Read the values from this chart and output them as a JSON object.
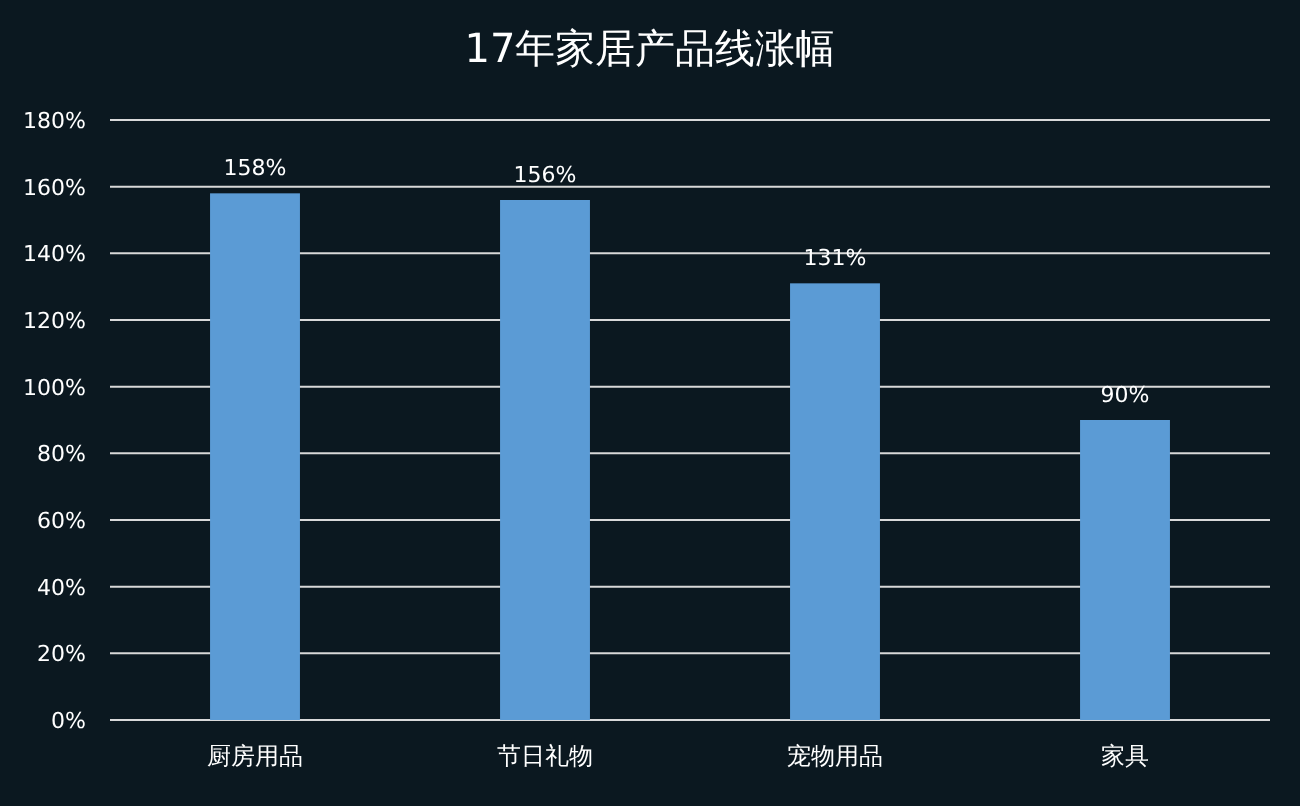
{
  "chart_data": {
    "type": "bar",
    "title": "17年家居产品线涨幅",
    "categories": [
      "厨房用品",
      "节日礼物",
      "宠物用品",
      "家具"
    ],
    "values": [
      158,
      156,
      131,
      90
    ],
    "value_labels": [
      "158%",
      "156%",
      "131%",
      "90%"
    ],
    "color": "#5b9bd5",
    "ylim": [
      0,
      180
    ],
    "yticks": [
      {
        "value": 0,
        "label": "0%"
      },
      {
        "value": 20,
        "label": "20%"
      },
      {
        "value": 40,
        "label": "40%"
      },
      {
        "value": 60,
        "label": "60%"
      },
      {
        "value": 80,
        "label": "80%"
      },
      {
        "value": 100,
        "label": "100%"
      },
      {
        "value": 120,
        "label": "120%"
      },
      {
        "value": 140,
        "label": "140%"
      },
      {
        "value": 160,
        "label": "160%"
      },
      {
        "value": 180,
        "label": "180%"
      }
    ],
    "grid": "y"
  }
}
